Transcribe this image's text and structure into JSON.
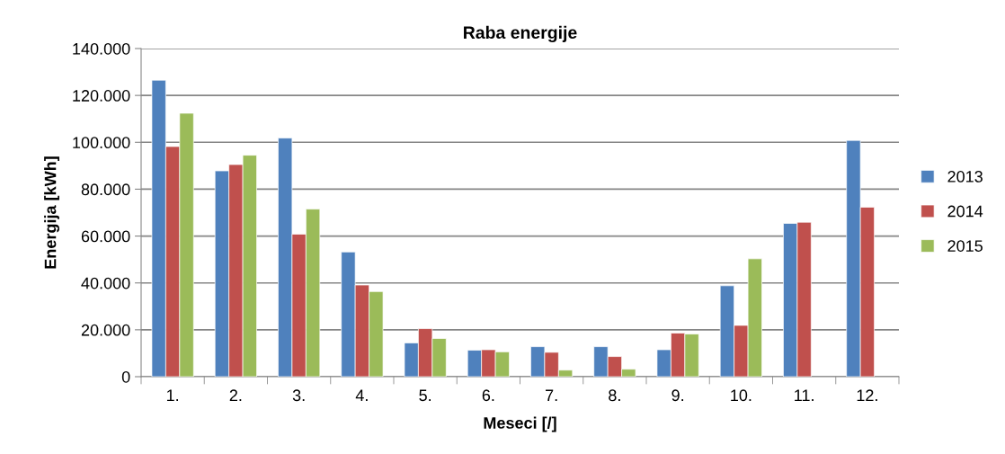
{
  "chart_data": {
    "type": "bar",
    "title": "Raba energije",
    "xlabel": "Meseci [/]",
    "ylabel": "Energija [kWh]",
    "categories": [
      "1.",
      "2.",
      "3.",
      "4.",
      "5.",
      "6.",
      "7.",
      "8.",
      "9.",
      "10.",
      "11.",
      "12."
    ],
    "series": [
      {
        "name": "2013",
        "color": "#4f81bd",
        "values": [
          126500,
          87800,
          101800,
          53200,
          14400,
          11300,
          12800,
          12800,
          11500,
          38800,
          65400,
          100800
        ]
      },
      {
        "name": "2014",
        "color": "#c0504d",
        "values": [
          98200,
          90500,
          60800,
          39100,
          20500,
          11500,
          10400,
          8600,
          18600,
          21900,
          65900,
          72300
        ]
      },
      {
        "name": "2015",
        "color": "#9bbb59",
        "values": [
          112400,
          94500,
          71500,
          36300,
          16300,
          10600,
          2800,
          3200,
          18200,
          50300,
          null,
          null
        ]
      }
    ],
    "ylim": [
      0,
      140000
    ],
    "yticks": [
      {
        "value": 0,
        "label": "0"
      },
      {
        "value": 20000,
        "label": "20.000"
      },
      {
        "value": 40000,
        "label": "40.000"
      },
      {
        "value": 60000,
        "label": "60.000"
      },
      {
        "value": 80000,
        "label": "80.000"
      },
      {
        "value": 100000,
        "label": "100.000"
      },
      {
        "value": 120000,
        "label": "120.000"
      },
      {
        "value": 140000,
        "label": "140.000"
      }
    ],
    "grid": "y",
    "legend": "right"
  }
}
